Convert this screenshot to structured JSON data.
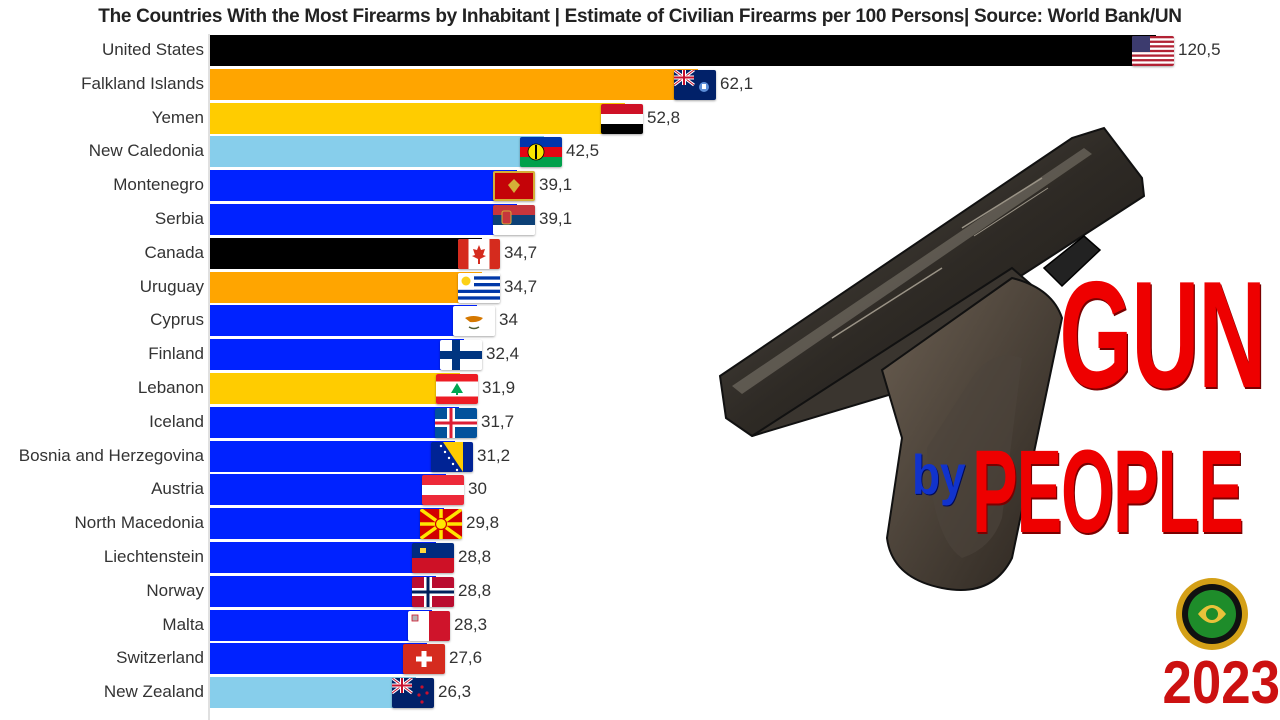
{
  "chart_data": {
    "type": "bar",
    "orientation": "horizontal",
    "title": "The Countries With the Most Firearms by Inhabitant | Estimate of Civilian Firearms per 100 Persons| Source: World Bank/UN",
    "xlim": [
      0,
      120.5
    ],
    "grid": false,
    "legend": "none",
    "categories": [
      "United States",
      "Falkland Islands",
      "Yemen",
      "New Caledonia",
      "Montenegro",
      "Serbia",
      "Canada",
      "Uruguay",
      "Cyprus",
      "Finland",
      "Lebanon",
      "Iceland",
      "Bosnia and Herzegovina",
      "Austria",
      "North Macedonia",
      "Liechtenstein",
      "Norway",
      "Malta",
      "Switzerland",
      "New Zealand"
    ],
    "values": [
      120.5,
      62.1,
      52.8,
      42.5,
      39.1,
      39.1,
      34.7,
      34.7,
      34,
      32.4,
      31.9,
      31.7,
      31.2,
      30,
      29.8,
      28.8,
      28.8,
      28.3,
      27.6,
      26.3
    ],
    "value_labels": [
      "120,5",
      "62,1",
      "52,8",
      "42,5",
      "39,1",
      "39,1",
      "34,7",
      "34,7",
      "34",
      "32,4",
      "31,9",
      "31,7",
      "31,2",
      "30",
      "29,8",
      "28,8",
      "28,8",
      "28,3",
      "27,6",
      "26,3"
    ],
    "bar_colors": [
      "#000000",
      "#ffa500",
      "#ffcc00",
      "#87ceeb",
      "#0022ff",
      "#0022ff",
      "#000000",
      "#ffa500",
      "#0022ff",
      "#0022ff",
      "#ffcc00",
      "#0022ff",
      "#0022ff",
      "#0022ff",
      "#0022ff",
      "#0022ff",
      "#0022ff",
      "#0022ff",
      "#0022ff",
      "#87ceeb"
    ],
    "flag_icons": [
      "flag-us-icon",
      "flag-falkland-islands-icon",
      "flag-yemen-icon",
      "flag-new-caledonia-icon",
      "flag-montenegro-icon",
      "flag-serbia-icon",
      "flag-canada-icon",
      "flag-uruguay-icon",
      "flag-cyprus-icon",
      "flag-finland-icon",
      "flag-lebanon-icon",
      "flag-iceland-icon",
      "flag-bosnia-icon",
      "flag-austria-icon",
      "flag-north-macedonia-icon",
      "flag-liechtenstein-icon",
      "flag-norway-icon",
      "flag-malta-icon",
      "flag-switzerland-icon",
      "flag-new-zealand-icon"
    ]
  },
  "overlay": {
    "headline_gun": "GUN",
    "headline_by": "by",
    "headline_people": "PEOPLE",
    "year": "2023",
    "gun_icon": "pistol-icon",
    "logo_icon": "channel-logo-icon"
  },
  "colors": {
    "headline_red": "#ee0000",
    "headline_blue": "#1133cc",
    "year_red": "#cc1111"
  }
}
